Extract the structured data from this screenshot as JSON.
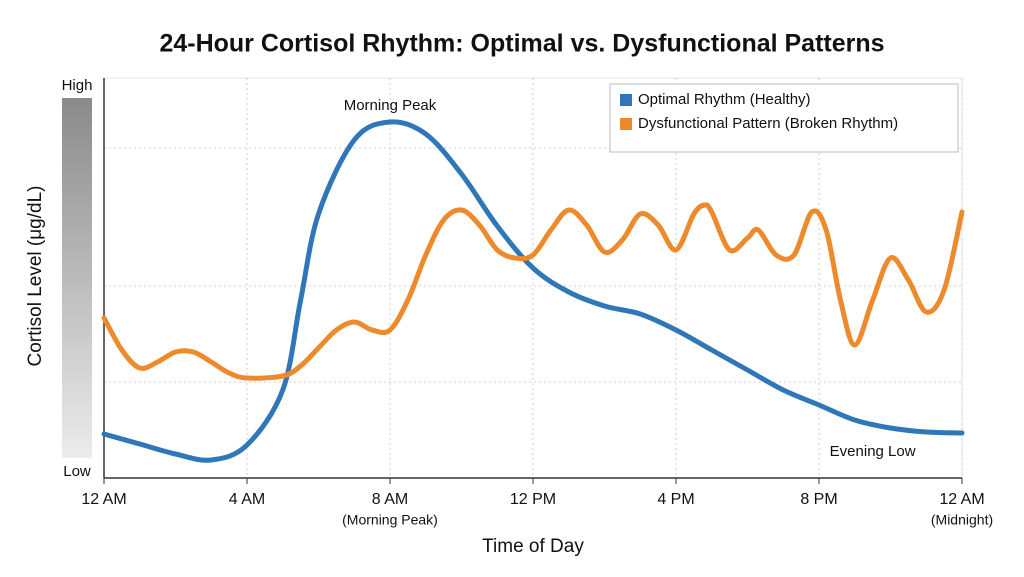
{
  "chart_data": {
    "type": "line",
    "title": "24-Hour Cortisol Rhythm: Optimal vs. Dysfunctional Patterns",
    "x_label": "Time of Day",
    "y_label": "Cortisol Level (μg/dL)",
    "y_high_label": "High",
    "y_low_label": "Low",
    "xlim": [
      0,
      24
    ],
    "ylim": [
      0,
      100
    ],
    "xticks": [
      {
        "value": 0,
        "label": "12 AM"
      },
      {
        "value": 4,
        "label": "4 AM"
      },
      {
        "value": 8,
        "label": "8 AM",
        "note": "(Morning Peak)"
      },
      {
        "value": 12,
        "label": "12 PM"
      },
      {
        "value": 16,
        "label": "4 PM"
      },
      {
        "value": 20,
        "label": "8 PM"
      },
      {
        "value": 24,
        "label": "12 AM",
        "note": "(Midnight)"
      }
    ],
    "ygrid": [
      24,
      48,
      82.5
    ],
    "grid": true,
    "legend": "upper right",
    "series": [
      {
        "name": "Optimal Rhythm (Healthy)",
        "color": "#2f77b8",
        "x": [
          0,
          1,
          2,
          3,
          4,
          5,
          5.5,
          6,
          7,
          8,
          9,
          10,
          11,
          12,
          13,
          14,
          15,
          16,
          17,
          18,
          19,
          20,
          21,
          22,
          23,
          24
        ],
        "values": [
          11,
          8.5,
          6,
          4.5,
          8.25,
          22,
          44.5,
          66,
          84.5,
          89,
          86,
          76,
          63,
          52.5,
          46.5,
          43,
          41,
          37,
          32,
          27,
          22,
          18.25,
          14.5,
          12.5,
          11.5,
          11.25
        ]
      },
      {
        "name": "Dysfunctional Pattern (Broken Rhythm)",
        "color": "#ec8a2c",
        "x": [
          0,
          0.5,
          1,
          1.5,
          2,
          2.5,
          3,
          3.5,
          4,
          5,
          5.5,
          6,
          6.5,
          7,
          7.5,
          8,
          8.5,
          9,
          9.5,
          10,
          10.5,
          11,
          11.5,
          12,
          12.5,
          13,
          13.5,
          14,
          14.5,
          15,
          15.5,
          16,
          16.5,
          16.8,
          17,
          17.5,
          18,
          18.3,
          18.8,
          19.3,
          19.8,
          20.2,
          20.6,
          21,
          21.5,
          22,
          22.5,
          23,
          23.5,
          24
        ],
        "values": [
          40,
          32,
          27.5,
          29,
          31.5,
          31.5,
          29,
          26.25,
          25,
          25.5,
          28,
          32.5,
          37,
          39,
          37,
          37,
          44.5,
          55.75,
          64.5,
          67,
          63.25,
          57,
          55,
          55.75,
          62,
          67,
          63.25,
          56.5,
          59.5,
          66,
          63.25,
          57,
          66,
          68.25,
          66.5,
          57,
          60,
          62,
          55.75,
          55.75,
          66.5,
          62,
          44.5,
          33.25,
          44.5,
          55,
          49.5,
          41.5,
          47,
          66.5
        ]
      }
    ],
    "annotations": [
      {
        "text": "Morning Peak",
        "x": 8,
        "y": 93
      },
      {
        "text": "Evening Low",
        "x": 21.5,
        "y": 6.5
      }
    ]
  }
}
